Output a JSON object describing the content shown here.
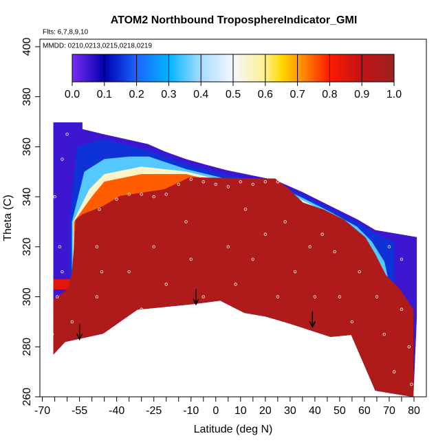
{
  "chart_data": {
    "type": "contour",
    "title": "ATOM2 Northbound TroposphereIndicator_GMI",
    "subtitle": "Flts: 6,7,8,9,10",
    "annotation": "MMDD: 0210,0213,0215,0218,0219",
    "xlabel": "Latitude (deg N)",
    "ylabel": "Theta (C)",
    "xlim": [
      -71,
      85
    ],
    "ylim": [
      260,
      403
    ],
    "xticks": [
      -70,
      -55,
      -40,
      -25,
      -10,
      0,
      10,
      20,
      30,
      40,
      50,
      60,
      70,
      80
    ],
    "xminorticks": [
      -65,
      -60,
      -50,
      -45,
      -35,
      -30,
      -20,
      -15,
      -5,
      5,
      15,
      25,
      35,
      45,
      55,
      65,
      75
    ],
    "yticks": [
      260,
      280,
      300,
      320,
      340,
      360,
      380,
      400
    ],
    "colorbar_lim": [
      0,
      1
    ],
    "colorbar_ticks": [
      {
        "value": 0,
        "label": "0.0"
      },
      0.1,
      0.2,
      0.3,
      0.4,
      0.5,
      0.6,
      0.7,
      0.8,
      0.9,
      {
        "value": 1,
        "label": "1.0"
      }
    ],
    "colorscale": [
      [
        0,
        "#7a2cf0"
      ],
      [
        0.1,
        "#0000b0"
      ],
      [
        0.2,
        "#1a66ff"
      ],
      [
        0.3,
        "#00b4ff"
      ],
      [
        0.4,
        "#a8dcff"
      ],
      [
        0.5,
        "#f4f8ff"
      ],
      [
        0.6,
        "#fff090"
      ],
      [
        0.65,
        "#ffd800"
      ],
      [
        0.7,
        "#ffa000"
      ],
      [
        0.8,
        "#ff1a00"
      ],
      [
        0.9,
        "#c01414"
      ],
      [
        1,
        "#9e2020"
      ]
    ],
    "regions": [
      {
        "value": 0.05,
        "lat": [
          -65.5,
          -65.5,
          -53.9,
          -53.9,
          -45.5,
          -27.4,
          -20.5,
          -12.1,
          -3.8,
          4.6,
          24,
          35.2,
          46.3,
          57.5,
          64.4,
          81.1,
          81.1,
          79.7,
          64.4,
          54.7,
          46.3,
          29.6,
          19.9,
          11.5,
          1.8,
          -9.3,
          -31.6,
          -45.5,
          -60.8
        ],
        "theta": [
          277,
          369.7,
          369.7,
          367,
          365,
          361,
          358,
          355,
          352.7,
          350.5,
          346.6,
          341.7,
          336.2,
          330.7,
          326.6,
          323.8,
          292,
          260,
          262.5,
          284.8,
          284,
          289.4,
          292.2,
          293.6,
          298.5,
          297.1,
          294.9,
          285.3,
          282
        ]
      },
      {
        "value": 0.15,
        "lat": [
          -59,
          -59,
          -56,
          -45.5,
          -27.4,
          -12,
          4.6,
          24,
          35.2,
          46.3,
          57.5,
          64.4,
          72,
          72,
          66
        ],
        "theta": [
          300,
          330,
          360,
          363,
          358.5,
          353,
          348.5,
          345.5,
          340.5,
          335,
          329.5,
          325,
          322,
          300,
          300
        ]
      },
      {
        "value": 0.35,
        "lat": [
          -58,
          -58,
          -53,
          -45,
          -35,
          -27,
          -12,
          4.6,
          24,
          35,
          46,
          57,
          63,
          68,
          70,
          65
        ],
        "theta": [
          305,
          330,
          350,
          355,
          356,
          356,
          351,
          347,
          344.5,
          339.5,
          334,
          328,
          322,
          314,
          305,
          305
        ]
      },
      {
        "value": 0.55,
        "lat": [
          -57.6,
          -57.5,
          -51,
          -45,
          -30,
          -12,
          4.6,
          24,
          35,
          46,
          56,
          62,
          67,
          70,
          66
        ],
        "theta": [
          306,
          330,
          343,
          349,
          352,
          350,
          346,
          343.5,
          338.5,
          333,
          327,
          320,
          312,
          304,
          306
        ]
      },
      {
        "value": 0.75,
        "lat": [
          -57.3,
          -57.2,
          -50,
          -45,
          -30,
          -12,
          4.6,
          24,
          34,
          45,
          55,
          61,
          66,
          71,
          66
        ],
        "theta": [
          304,
          330,
          340,
          346,
          349,
          349,
          345,
          343,
          338,
          332.5,
          326,
          319,
          311,
          303,
          306
        ]
      },
      {
        "value": 0.85,
        "lat": [
          -65.5,
          -65.5,
          -58,
          -58
        ],
        "theta": [
          303,
          307,
          307,
          303
        ]
      },
      {
        "value": 0.95,
        "lat": [
          -56.6,
          -53.9,
          -45.5,
          -38.6,
          -28.8,
          -20.5,
          -10.7,
          24,
          29.6,
          35.2,
          43.6,
          51.9,
          60.3,
          64.4,
          68.6,
          74.2,
          79.7,
          79.7,
          64.4,
          54.7,
          46.3,
          29.6,
          19.9,
          11.5,
          1.8,
          -9.3,
          -31.6,
          -45.5,
          -60.8,
          -65.5,
          -65.5,
          -59.4,
          -58,
          -57.2
        ],
        "theta": [
          330.7,
          332.9,
          336.2,
          340.3,
          341.7,
          343,
          347.7,
          347.2,
          343,
          337.6,
          334.8,
          330.7,
          323.8,
          316.9,
          308.7,
          303.2,
          294.9,
          260,
          262.5,
          284.8,
          284,
          289.4,
          292.2,
          293.6,
          298.5,
          297.1,
          294.9,
          285.3,
          282,
          277,
          299,
          303.2,
          310,
          319.7
        ]
      }
    ],
    "flight_points": {
      "lat": [
        -66,
        -64,
        -63,
        -65,
        -62,
        -60,
        -58,
        -62,
        -48,
        -48,
        -47,
        -46,
        -40,
        -35,
        -30,
        -25,
        -20,
        -15,
        -10,
        -5,
        0,
        5,
        10,
        15,
        20,
        25,
        -35,
        -30,
        -25,
        -20,
        -12,
        -10,
        -5,
        5,
        8,
        12,
        15,
        20,
        25,
        28,
        32,
        38,
        40,
        43,
        48,
        50,
        55,
        58,
        65,
        68,
        72,
        75,
        78,
        79,
        70,
        75
      ],
      "theta": [
        285,
        300,
        320,
        340,
        355,
        365,
        290,
        310,
        300,
        320,
        335,
        310,
        339,
        341,
        341,
        340,
        341,
        345,
        347,
        346,
        345,
        344,
        346,
        345,
        346,
        346,
        310,
        295,
        320,
        305,
        330,
        315,
        300,
        320,
        305,
        335,
        315,
        325,
        300,
        330,
        310,
        320,
        300,
        325,
        318,
        300,
        290,
        310,
        300,
        285,
        270,
        295,
        280,
        265,
        320,
        315
      ]
    },
    "arrows": {
      "lat": [
        -55,
        -8,
        39
      ],
      "theta": [
        289,
        303,
        294
      ]
    }
  }
}
